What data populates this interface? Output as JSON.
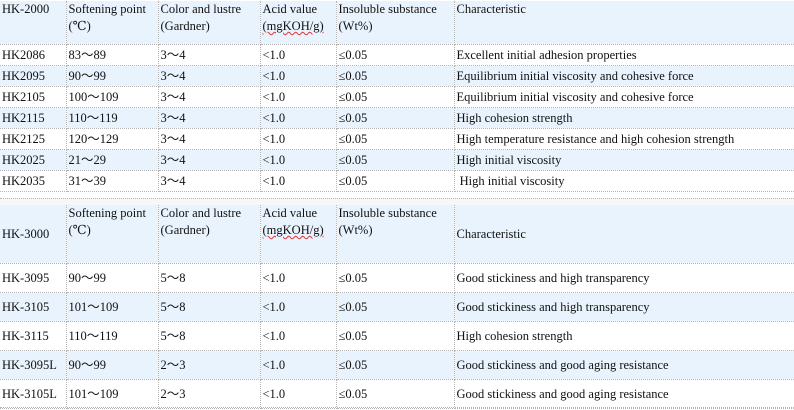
{
  "table1": {
    "headers": {
      "series": "HK-2000",
      "softening": [
        "Softening point",
        "(℃)"
      ],
      "color": [
        "Color and lustre",
        "(Gardner)"
      ],
      "acid": [
        "Acid value",
        "(mgKOH/g)"
      ],
      "insoluble": [
        "Insoluble substance",
        "(Wt%)"
      ],
      "characteristic": "Characteristic"
    },
    "rows": [
      {
        "model": "HK2086",
        "softening": "83～89",
        "color": "3～4",
        "acid": "<1.0",
        "insoluble": "≤0.05",
        "characteristic": "Excellent initial adhesion properties"
      },
      {
        "model": "HK2095",
        "softening": "90～99",
        "color": "3～4",
        "acid": "<1.0",
        "insoluble": "≤0.05",
        "characteristic": "Equilibrium initial viscosity and cohesive force"
      },
      {
        "model": "HK2105",
        "softening": "100～109",
        "color": "3～4",
        "acid": "<1.0",
        "insoluble": "≤0.05",
        "characteristic": "Equilibrium initial viscosity and cohesive force"
      },
      {
        "model": "HK2115",
        "softening": "110～119",
        "color": "3～4",
        "acid": "<1.0",
        "insoluble": "≤0.05",
        "characteristic": "High cohesion strength"
      },
      {
        "model": "HK2125",
        "softening": "120～129",
        "color": "3～4",
        "acid": "<1.0",
        "insoluble": "≤0.05",
        "characteristic": "High temperature resistance and high cohesion strength"
      },
      {
        "model": "HK2025",
        "softening": "21～29",
        "color": "3～4",
        "acid": "<1.0",
        "insoluble": "≤0.05",
        "characteristic": "High initial viscosity"
      },
      {
        "model": "HK2035",
        "softening": "31～39",
        "color": "3～4",
        "acid": "<1.0",
        "insoluble": "≤0.05",
        "characteristic": " High initial viscosity"
      }
    ]
  },
  "table2": {
    "headers": {
      "series": "HK-3000",
      "softening": [
        "Softening point",
        "(℃)"
      ],
      "color": [
        "Color and lustre",
        "(Gardner)"
      ],
      "acid": [
        "Acid value",
        "(mgKOH/g)"
      ],
      "insoluble": [
        "Insoluble substance",
        "(Wt%)"
      ],
      "characteristic": "Characteristic"
    },
    "rows": [
      {
        "model": "HK-3095",
        "softening": "90～99",
        "color": "5～8",
        "acid": "<1.0",
        "insoluble": "≤0.05",
        "characteristic": "Good stickiness and high transparency"
      },
      {
        "model": "HK-3105",
        "softening": "101～109",
        "color": "5～8",
        "acid": "<1.0",
        "insoluble": "≤0.05",
        "characteristic": "Good stickiness and high transparency"
      },
      {
        "model": "HK-3115",
        "softening": "110～119",
        "color": "5～8",
        "acid": "<1.0",
        "insoluble": "≤0.05",
        "characteristic": "High cohesion strength"
      },
      {
        "model": "HK-3095L",
        "softening": "90～99",
        "color": "2～3",
        "acid": "<1.0",
        "insoluble": "≤0.05",
        "characteristic": "Good stickiness and good aging resistance"
      },
      {
        "model": "HK-3105L",
        "softening": "101～109",
        "color": "2～3",
        "acid": "<1.0",
        "insoluble": "≤0.05",
        "characteristic": "Good stickiness and good aging resistance"
      }
    ]
  },
  "colors": {
    "shade": "#e9f3fd",
    "grid": "#b5b5b5",
    "spellcheck": "#dd3333"
  }
}
